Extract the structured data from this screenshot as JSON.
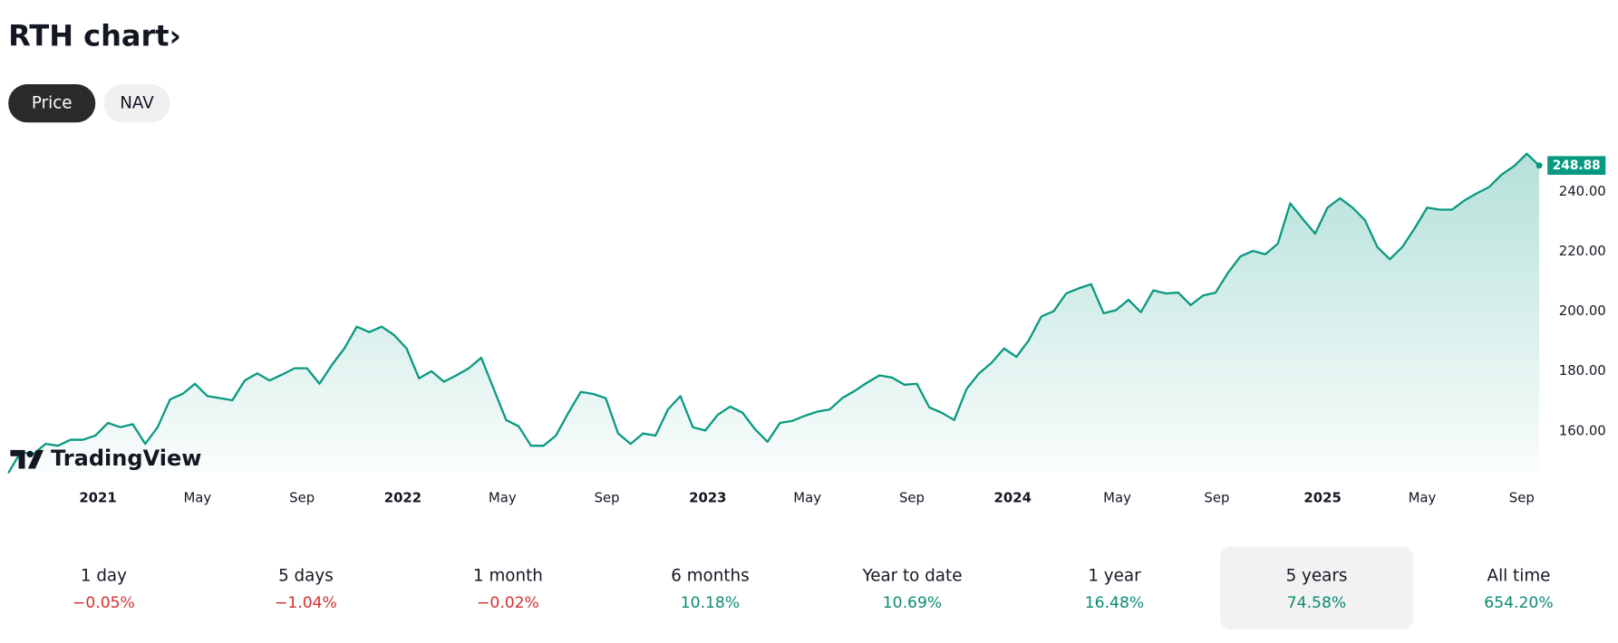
{
  "header": {
    "title": "RTH chart›"
  },
  "tabs": {
    "items": [
      "Price",
      "NAV"
    ],
    "active": "Price"
  },
  "chart_data": {
    "type": "line",
    "grid": false,
    "series": [
      {
        "name": "RTH",
        "color": "#089981",
        "values": [
          146.1,
          153.1,
          152.4,
          155.8,
          155.2,
          157.2,
          157.2,
          158.6,
          162.8,
          161.4,
          162.4,
          155.8,
          161.4,
          170.7,
          172.5,
          175.9,
          171.8,
          171.1,
          170.4,
          177.0,
          179.4,
          177.0,
          179.0,
          181.1,
          181.1,
          175.9,
          182.2,
          187.7,
          195.0,
          193.2,
          195.0,
          192.2,
          187.7,
          177.7,
          180.1,
          176.6,
          178.7,
          181.1,
          184.6,
          174.2,
          163.8,
          161.7,
          155.2,
          155.2,
          158.6,
          166.2,
          173.2,
          172.5,
          171.1,
          159.3,
          155.8,
          159.3,
          158.6,
          167.3,
          171.8,
          161.4,
          160.3,
          165.5,
          168.3,
          166.2,
          160.7,
          156.5,
          162.8,
          163.5,
          165.2,
          166.6,
          167.3,
          171.1,
          173.5,
          176.3,
          178.7,
          178.0,
          175.6,
          175.9,
          168.0,
          166.2,
          163.8,
          174.2,
          179.4,
          182.9,
          187.7,
          184.9,
          190.5,
          198.4,
          200.2,
          206.1,
          207.8,
          209.2,
          199.5,
          200.5,
          204.0,
          199.8,
          207.1,
          206.1,
          206.4,
          202.2,
          205.4,
          206.4,
          213.0,
          218.5,
          220.3,
          219.2,
          222.7,
          236.2,
          231.0,
          226.1,
          234.8,
          237.9,
          234.8,
          230.6,
          221.6,
          217.5,
          221.6,
          227.9,
          234.8,
          234.1,
          234.1,
          237.2,
          239.6,
          241.7,
          245.9,
          248.7,
          252.8,
          248.88
        ]
      }
    ],
    "last_label": "248.88",
    "xlim": [
      0,
      123
    ],
    "xticks": [
      {
        "value": 7.2,
        "label": "2021"
      },
      {
        "value": 15.2,
        "label": "May"
      },
      {
        "value": 23.6,
        "label": "Sep"
      },
      {
        "value": 31.7,
        "label": "2022"
      },
      {
        "value": 39.7,
        "label": "May"
      },
      {
        "value": 48.1,
        "label": "Sep"
      },
      {
        "value": 56.2,
        "label": "2023"
      },
      {
        "value": 64.2,
        "label": "May"
      },
      {
        "value": 72.6,
        "label": "Sep"
      },
      {
        "value": 80.7,
        "label": "2024"
      },
      {
        "value": 89.1,
        "label": "May"
      },
      {
        "value": 97.1,
        "label": "Sep"
      },
      {
        "value": 105.6,
        "label": "2025"
      },
      {
        "value": 113.6,
        "label": "May"
      },
      {
        "value": 121.6,
        "label": "Sep"
      }
    ],
    "ylim": [
      146.5,
      255.6
    ],
    "yticks": [
      {
        "value": 160,
        "label": "160.00"
      },
      {
        "value": 180,
        "label": "180.00"
      },
      {
        "value": 200,
        "label": "200.00"
      },
      {
        "value": 220,
        "label": "220.00"
      },
      {
        "value": 240,
        "label": "240.00"
      }
    ]
  },
  "branding": {
    "logo_text": "TradingView"
  },
  "periods": [
    {
      "label": "1 day",
      "value": "−0.05%"
    },
    {
      "label": "5 days",
      "value": "−1.04%"
    },
    {
      "label": "1 month",
      "value": "−0.02%"
    },
    {
      "label": "6 months",
      "value": "10.18%"
    },
    {
      "label": "Year to date",
      "value": "10.69%"
    },
    {
      "label": "1 year",
      "value": "16.48%"
    },
    {
      "label": "5 years",
      "value": "74.58%",
      "selected": true
    },
    {
      "label": "All time",
      "value": "654.20%"
    }
  ]
}
